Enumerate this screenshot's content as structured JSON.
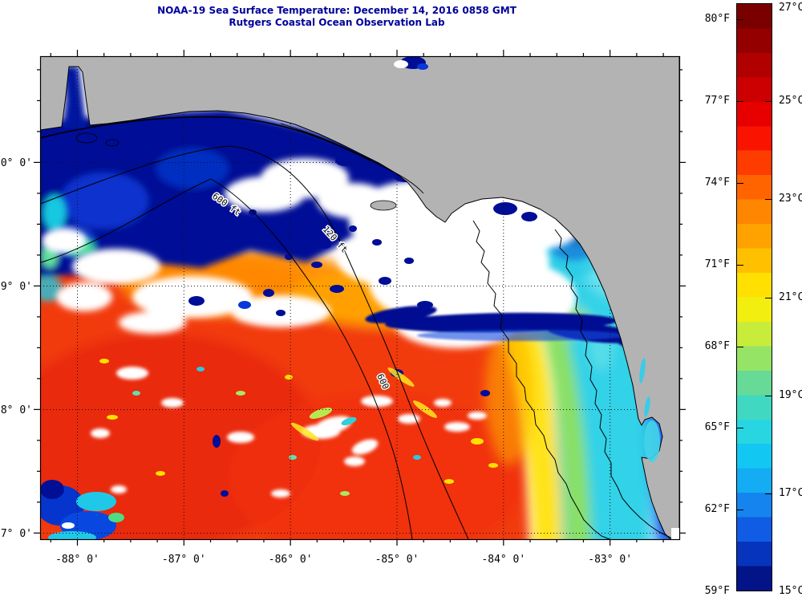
{
  "title": {
    "line1": "NOAA-19 Sea Surface Temperature:  December 14, 2016 0858 GMT",
    "line2": "Rutgers Coastal Ocean Observation Lab",
    "color": "#00009a"
  },
  "axes": {
    "lon": {
      "min": -88.35,
      "max": -82.35,
      "minor_step": 0.25,
      "major_ticks": [
        {
          "value": -88,
          "label": "-88° 0'"
        },
        {
          "value": -87,
          "label": "-87° 0'"
        },
        {
          "value": -86,
          "label": "-86° 0'"
        },
        {
          "value": -85,
          "label": "-85° 0'"
        },
        {
          "value": -84,
          "label": "-84° 0'"
        },
        {
          "value": -83,
          "label": "-83° 0'"
        }
      ]
    },
    "lat": {
      "min": 26.95,
      "max": 30.86,
      "minor_step": 0.25,
      "major_ticks": [
        {
          "value": 30,
          "label": "30° 0'"
        },
        {
          "value": 29,
          "label": "29° 0'"
        },
        {
          "value": 28,
          "label": "28° 0'"
        },
        {
          "value": 27,
          "label": "27° 0'"
        }
      ]
    }
  },
  "colorbar": {
    "range_c": {
      "min": 15,
      "max": 27
    },
    "f_ticks": [
      {
        "f": 80,
        "label": "80°F"
      },
      {
        "f": 77,
        "label": "77°F"
      },
      {
        "f": 74,
        "label": "74°F"
      },
      {
        "f": 71,
        "label": "71°F"
      },
      {
        "f": 68,
        "label": "68°F"
      },
      {
        "f": 65,
        "label": "65°F"
      },
      {
        "f": 62,
        "label": "62°F"
      },
      {
        "f": 59,
        "label": "59°F"
      }
    ],
    "c_ticks": [
      {
        "c": 27,
        "label": "27°C"
      },
      {
        "c": 25,
        "label": "25°C"
      },
      {
        "c": 23,
        "label": "23°C"
      },
      {
        "c": 21,
        "label": "21°C"
      },
      {
        "c": 19,
        "label": "19°C"
      },
      {
        "c": 17,
        "label": "17°C"
      },
      {
        "c": 15,
        "label": "15°C"
      }
    ],
    "band_colors": [
      "#7a0000",
      "#940000",
      "#b00000",
      "#cc0000",
      "#e60000",
      "#fa1400",
      "#ff3c00",
      "#ff6400",
      "#ff8600",
      "#ffa200",
      "#ffc000",
      "#ffe000",
      "#f2ee10",
      "#c8ec3a",
      "#96e466",
      "#66da96",
      "#40d8c0",
      "#28d6e2",
      "#12c8f2",
      "#14acf2",
      "#1684ee",
      "#105ce4",
      "#0634bc",
      "#021488"
    ]
  },
  "map": {
    "land_color": "#b3b3b3",
    "cloud_color": "#ffffff",
    "contour_labels": [
      {
        "text": "600 ft"
      },
      {
        "text": "120 ft"
      },
      {
        "text": "600"
      }
    ]
  }
}
